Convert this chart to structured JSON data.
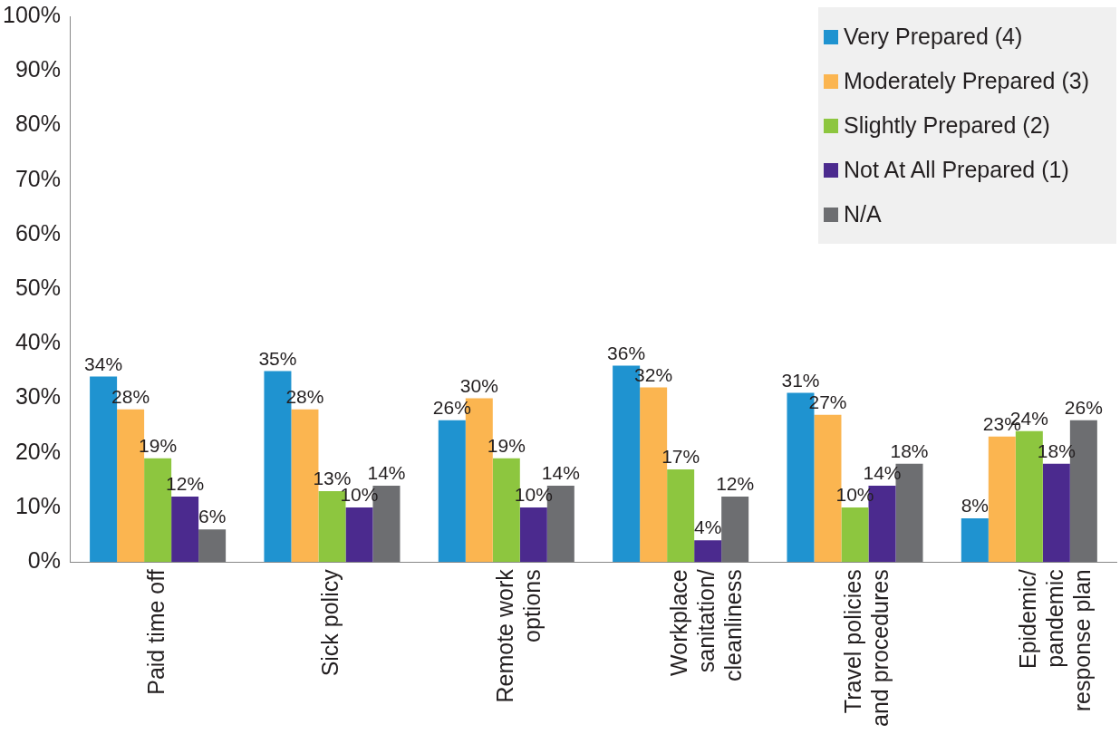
{
  "chart_data": {
    "type": "bar",
    "categories": [
      "Paid time off",
      "Sick policy",
      "Remote work options",
      "Workplace sanitation/ cleanliness",
      "Travel policies and procedures",
      "Epidemic/ pandemic response plan"
    ],
    "series": [
      {
        "name": "Very Prepared (4)",
        "color": "#1f93d0",
        "values": [
          34,
          35,
          26,
          36,
          31,
          8
        ],
        "value_labels": [
          "34%",
          "35%",
          "26%",
          "36%",
          "31%",
          "8%"
        ]
      },
      {
        "name": "Moderately Prepared (3)",
        "color": "#fbb550",
        "values": [
          28,
          28,
          30,
          32,
          27,
          23
        ],
        "value_labels": [
          "28%",
          "28%",
          "30%",
          "32%",
          "27%",
          "23%"
        ]
      },
      {
        "name": "Slightly Prepared (2)",
        "color": "#8dc63f",
        "values": [
          19,
          13,
          19,
          17,
          10,
          24
        ],
        "value_labels": [
          "19%",
          "13%",
          "19%",
          "17%",
          "10%",
          "24%"
        ]
      },
      {
        "name": "Not At All Prepared (1)",
        "color": "#4b2a8e",
        "values": [
          12,
          10,
          10,
          4,
          14,
          18
        ],
        "value_labels": [
          "12%",
          "10%",
          "10%",
          "4%",
          "14%",
          "18%"
        ]
      },
      {
        "name": "N/A",
        "color": "#6d6e71",
        "values": [
          6,
          14,
          14,
          12,
          18,
          26
        ],
        "value_labels": [
          "6%",
          "14%",
          "14%",
          "12%",
          "18%",
          "26%"
        ]
      }
    ],
    "ylim": [
      0,
      100
    ],
    "yticks": [
      {
        "value": 0,
        "label": "0%"
      },
      {
        "value": 10,
        "label": "10%"
      },
      {
        "value": 20,
        "label": "20%"
      },
      {
        "value": 30,
        "label": "30%"
      },
      {
        "value": 40,
        "label": "40%"
      },
      {
        "value": 50,
        "label": "50%"
      },
      {
        "value": 60,
        "label": "60%"
      },
      {
        "value": 70,
        "label": "70%"
      },
      {
        "value": 80,
        "label": "80%"
      },
      {
        "value": 90,
        "label": "90%"
      },
      {
        "value": 100,
        "label": "100%"
      }
    ],
    "grid": false,
    "legend": "top right"
  }
}
